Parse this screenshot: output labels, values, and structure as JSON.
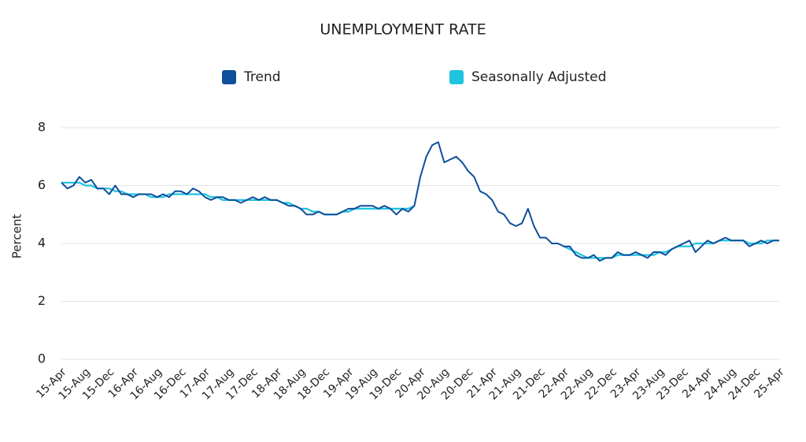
{
  "chart_data": {
    "type": "line",
    "title": "UNEMPLOYMENT RATE",
    "y_label": "Percent",
    "categories": [
      "15-Apr",
      null,
      null,
      null,
      "15-Aug",
      null,
      null,
      null,
      "15-Dec",
      null,
      null,
      null,
      "16-Apr",
      null,
      null,
      null,
      "16-Aug",
      null,
      null,
      null,
      "16-Dec",
      null,
      null,
      null,
      "17-Apr",
      null,
      null,
      null,
      "17-Aug",
      null,
      null,
      null,
      "17-Dec",
      null,
      null,
      null,
      "18-Apr",
      null,
      null,
      null,
      "18-Aug",
      null,
      null,
      null,
      "18-Dec",
      null,
      null,
      null,
      "19-Apr",
      null,
      null,
      null,
      "19-Aug",
      null,
      null,
      null,
      "19-Dec",
      null,
      null,
      null,
      "20-Apr",
      null,
      null,
      null,
      "20-Aug",
      null,
      null,
      null,
      "20-Dec",
      null,
      null,
      null,
      "21-Apr",
      null,
      null,
      null,
      "21-Aug",
      null,
      null,
      null,
      "21-Dec",
      null,
      null,
      null,
      "22-Apr",
      null,
      null,
      null,
      "22-Aug",
      null,
      null,
      null,
      "22-Dec",
      null,
      null,
      null,
      "23-Apr",
      null,
      null,
      null,
      "23-Aug",
      null,
      null,
      null,
      "23-Dec",
      null,
      null,
      null,
      "24-Apr",
      null,
      null,
      null,
      "24-Aug",
      null,
      null,
      null,
      "24-Dec",
      null,
      null,
      null,
      "25-Apr"
    ],
    "series": [
      {
        "name": "Trend",
        "color": "#0d4f9c",
        "values": [
          6.1,
          5.9,
          6.0,
          6.3,
          6.1,
          6.2,
          5.9,
          5.9,
          5.7,
          6.0,
          5.7,
          5.7,
          5.6,
          5.7,
          5.7,
          5.7,
          5.6,
          5.7,
          5.6,
          5.8,
          5.8,
          5.7,
          5.9,
          5.8,
          5.6,
          5.5,
          5.6,
          5.6,
          5.5,
          5.5,
          5.4,
          5.5,
          5.6,
          5.5,
          5.6,
          5.5,
          5.5,
          5.4,
          5.3,
          5.3,
          5.2,
          5.0,
          5.0,
          5.1,
          5.0,
          5.0,
          5.0,
          5.1,
          5.2,
          5.2,
          5.3,
          5.3,
          5.3,
          5.2,
          5.3,
          5.2,
          5.0,
          5.2,
          5.1,
          5.3,
          6.3,
          7.0,
          7.4,
          7.5,
          6.8,
          6.9,
          7.0,
          6.8,
          6.5,
          6.3,
          5.8,
          5.7,
          5.5,
          5.1,
          5.0,
          4.7,
          4.6,
          4.7,
          5.2,
          4.6,
          4.2,
          4.2,
          4.0,
          4.0,
          3.9,
          3.9,
          3.6,
          3.5,
          3.5,
          3.6,
          3.4,
          3.5,
          3.5,
          3.7,
          3.6,
          3.6,
          3.7,
          3.6,
          3.5,
          3.7,
          3.7,
          3.6,
          3.8,
          3.9,
          4.0,
          4.1,
          3.7,
          3.9,
          4.1,
          4.0,
          4.1,
          4.2,
          4.1,
          4.1,
          4.1,
          3.9,
          4.0,
          4.1,
          4.0,
          4.1,
          4.1
        ]
      },
      {
        "name": "Seasonally Adjusted",
        "color": "#1fc3df",
        "values": [
          6.1,
          6.1,
          6.1,
          6.1,
          6.0,
          6.0,
          5.9,
          5.9,
          5.9,
          5.8,
          5.8,
          5.7,
          5.7,
          5.7,
          5.7,
          5.6,
          5.6,
          5.6,
          5.7,
          5.7,
          5.7,
          5.7,
          5.7,
          5.7,
          5.7,
          5.6,
          5.6,
          5.5,
          5.5,
          5.5,
          5.5,
          5.5,
          5.5,
          5.5,
          5.5,
          5.5,
          5.5,
          5.4,
          5.4,
          5.3,
          5.2,
          5.2,
          5.1,
          5.1,
          5.0,
          5.0,
          5.0,
          5.1,
          5.1,
          5.2,
          5.2,
          5.2,
          5.2,
          5.2,
          5.2,
          5.2,
          5.2,
          5.2,
          5.2,
          5.3,
          null,
          null,
          null,
          null,
          null,
          null,
          null,
          null,
          null,
          null,
          null,
          null,
          null,
          null,
          null,
          null,
          null,
          null,
          null,
          null,
          null,
          null,
          null,
          null,
          3.9,
          3.8,
          3.7,
          3.6,
          3.5,
          3.5,
          3.5,
          3.5,
          3.5,
          3.6,
          3.6,
          3.6,
          3.6,
          3.6,
          3.6,
          3.6,
          3.7,
          3.7,
          3.8,
          3.9,
          3.9,
          3.9,
          4.0,
          4.0,
          4.0,
          4.0,
          4.1,
          4.1,
          4.1,
          4.1,
          4.1,
          4.0,
          4.0,
          4.0,
          4.1,
          4.1,
          4.1
        ]
      }
    ],
    "ylim": [
      0,
      8
    ],
    "yticks": [
      0,
      2,
      4,
      6,
      8
    ],
    "grid": true
  }
}
